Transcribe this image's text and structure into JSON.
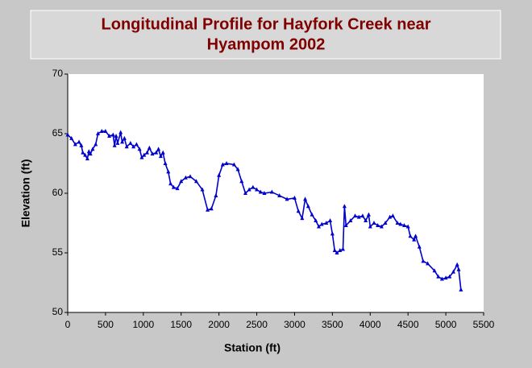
{
  "chart_data": {
    "type": "line",
    "title": [
      "Longitudinal Profile for Hayfork Creek near",
      "Hyampom 2002"
    ],
    "x_label": "Station (ft)",
    "y_label": "Elevation (ft)",
    "xlim": [
      0,
      5500
    ],
    "xticks": [
      0,
      500,
      1000,
      1500,
      2000,
      2500,
      3000,
      3500,
      4000,
      4500,
      5000,
      5500
    ],
    "ylim": [
      50,
      70
    ],
    "yticks": [
      50,
      55,
      60,
      65,
      70
    ],
    "x": [
      0,
      50,
      100,
      150,
      180,
      200,
      230,
      260,
      280,
      300,
      330,
      370,
      400,
      450,
      500,
      550,
      600,
      620,
      640,
      660,
      700,
      720,
      750,
      780,
      830,
      870,
      910,
      950,
      980,
      1010,
      1050,
      1080,
      1120,
      1170,
      1200,
      1230,
      1260,
      1290,
      1330,
      1360,
      1400,
      1450,
      1500,
      1560,
      1620,
      1700,
      1780,
      1850,
      1900,
      1960,
      2000,
      2050,
      2100,
      2200,
      2250,
      2300,
      2350,
      2400,
      2450,
      2500,
      2550,
      2600,
      2700,
      2800,
      2900,
      3000,
      3050,
      3100,
      3140,
      3180,
      3230,
      3280,
      3320,
      3360,
      3420,
      3470,
      3500,
      3530,
      3560,
      3600,
      3640,
      3660,
      3680,
      3740,
      3800,
      3850,
      3900,
      3940,
      3980,
      4000,
      4050,
      4100,
      4150,
      4200,
      4260,
      4300,
      4360,
      4400,
      4450,
      4500,
      4530,
      4580,
      4600,
      4650,
      4700,
      4760,
      4850,
      4900,
      4950,
      5000,
      5050,
      5100,
      5150,
      5170,
      5200
    ],
    "series": [
      {
        "name": "Elevation",
        "color": "#0000cc",
        "values": [
          64.9,
          64.6,
          64.1,
          64.3,
          64.0,
          63.4,
          63.2,
          62.9,
          63.5,
          63.3,
          63.7,
          64.1,
          65.0,
          65.2,
          65.2,
          64.8,
          64.9,
          64.0,
          64.8,
          64.2,
          65.1,
          64.3,
          64.6,
          63.9,
          64.2,
          63.9,
          64.1,
          63.7,
          63.0,
          63.2,
          63.4,
          63.8,
          63.3,
          63.4,
          63.7,
          63.1,
          63.4,
          62.5,
          61.8,
          60.8,
          60.5,
          60.4,
          61.0,
          61.3,
          61.4,
          61.0,
          60.3,
          58.6,
          58.7,
          59.8,
          61.5,
          62.4,
          62.5,
          62.4,
          62.0,
          61.0,
          60.0,
          60.3,
          60.5,
          60.3,
          60.1,
          60.0,
          60.1,
          59.8,
          59.5,
          59.6,
          58.5,
          57.9,
          59.5,
          58.9,
          58.2,
          57.7,
          57.2,
          57.4,
          57.5,
          57.7,
          56.6,
          55.2,
          55.0,
          55.2,
          55.3,
          58.9,
          57.3,
          57.7,
          58.1,
          58.0,
          58.1,
          57.7,
          58.2,
          57.2,
          57.5,
          57.3,
          57.2,
          57.5,
          58.0,
          58.1,
          57.5,
          57.4,
          57.3,
          57.2,
          56.4,
          56.1,
          56.4,
          55.5,
          54.3,
          54.1,
          53.5,
          53.0,
          52.8,
          52.9,
          53.0,
          53.4,
          54.0,
          53.6,
          51.9
        ]
      }
    ]
  }
}
